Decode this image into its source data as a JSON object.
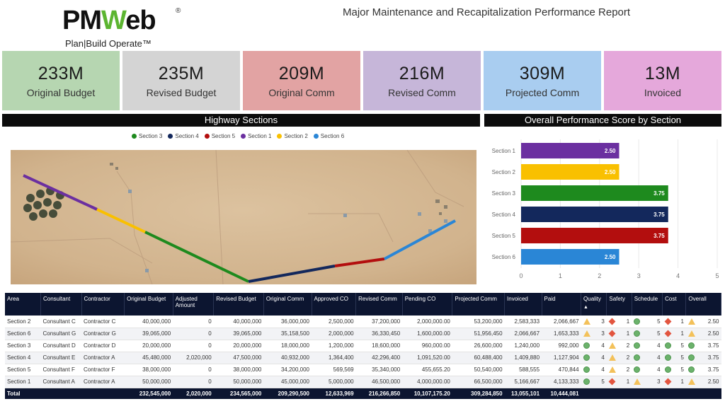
{
  "header": {
    "logo_text_a": "PM",
    "logo_text_w": "W",
    "logo_text_b": "eb",
    "logo_reg": "®",
    "logo_tagline": "Plan|Build Operate™",
    "title": "Major Maintenance and Recapitalization Performance Report"
  },
  "kpis": [
    {
      "value": "233M",
      "label": "Original Budget",
      "color": "#b6d6b1"
    },
    {
      "value": "235M",
      "label": "Revised Budget",
      "color": "#d4d4d4"
    },
    {
      "value": "209M",
      "label": "Original Comm",
      "color": "#e2a3a3"
    },
    {
      "value": "216M",
      "label": "Revised Comm",
      "color": "#c6b6d9"
    },
    {
      "value": "309M",
      "label": "Projected Comm",
      "color": "#a9cdf0"
    },
    {
      "value": "13M",
      "label": "Invoiced",
      "color": "#e5a8db"
    }
  ],
  "sections": {
    "highway_title": "Highway Sections",
    "performance_title": "Overall Performance Score by Section"
  },
  "legend": [
    {
      "label": "Section 3",
      "color": "#1e8a1e"
    },
    {
      "label": "Section 4",
      "color": "#13285c"
    },
    {
      "label": "Section 5",
      "color": "#b30e0e"
    },
    {
      "label": "Section 1",
      "color": "#6b2fa0"
    },
    {
      "label": "Section 2",
      "color": "#f9c000"
    },
    {
      "label": "Section 6",
      "color": "#2a86d6"
    }
  ],
  "chart_data": {
    "type": "bar",
    "orientation": "horizontal",
    "categories": [
      "Section 1",
      "Section 2",
      "Section 3",
      "Section 4",
      "Section 5",
      "Section 6"
    ],
    "values": [
      2.5,
      2.5,
      3.75,
      3.75,
      3.75,
      2.5
    ],
    "value_labels": [
      "2.50",
      "2.50",
      "3.75",
      "3.75",
      "3.75",
      "2.50"
    ],
    "colors": [
      "#6b2fa0",
      "#f9c000",
      "#1e8a1e",
      "#13285c",
      "#b30e0e",
      "#2a86d6"
    ],
    "xlim": [
      0,
      5
    ],
    "xticks": [
      "0",
      "1",
      "2",
      "3",
      "4",
      "5"
    ],
    "title": "Overall Performance Score by Section"
  },
  "table": {
    "headers": [
      "Area",
      "Consultant",
      "Contractor",
      "Original Budget",
      "Adjusted Amount",
      "Revised Budget",
      "Original Comm",
      "Approved CO",
      "Revised Comm",
      "Pending CO",
      "Projected Comm",
      "Invoiced",
      "Paid",
      "Quality",
      "Safety",
      "Schedule",
      "Cost",
      "Overall"
    ],
    "sort_indicator": "▲",
    "rows": [
      {
        "area": "Section 2",
        "consultant": "Consultant C",
        "contractor": "Contractor C",
        "orig_budget": "40,000,000",
        "adjusted": "0",
        "rev_budget": "40,000,000",
        "orig_comm": "36,000,000",
        "approved_co": "2,500,000",
        "rev_comm": "37,200,000",
        "pending_co": "2,000,000.00",
        "proj_comm": "53,200,000",
        "invoiced": "2,583,333",
        "paid": "2,066,667",
        "quality": {
          "icon": "triangle",
          "score": "3"
        },
        "safety": {
          "icon": "diamond",
          "score": "1"
        },
        "schedule": {
          "icon": "circle",
          "score": "5"
        },
        "cost": {
          "icon": "diamond",
          "score": "1"
        },
        "overall": {
          "icon": "triangle",
          "score": "2.50"
        }
      },
      {
        "area": "Section 6",
        "consultant": "Consultant G",
        "contractor": "Contractor G",
        "orig_budget": "39,065,000",
        "adjusted": "0",
        "rev_budget": "39,065,000",
        "orig_comm": "35,158,500",
        "approved_co": "2,000,000",
        "rev_comm": "36,330,450",
        "pending_co": "1,600,000.00",
        "proj_comm": "51,956,450",
        "invoiced": "2,066,667",
        "paid": "1,653,333",
        "quality": {
          "icon": "triangle",
          "score": "3"
        },
        "safety": {
          "icon": "diamond",
          "score": "1"
        },
        "schedule": {
          "icon": "circle",
          "score": "5"
        },
        "cost": {
          "icon": "diamond",
          "score": "1"
        },
        "overall": {
          "icon": "triangle",
          "score": "2.50"
        }
      },
      {
        "area": "Section 3",
        "consultant": "Consultant D",
        "contractor": "Contractor D",
        "orig_budget": "20,000,000",
        "adjusted": "0",
        "rev_budget": "20,000,000",
        "orig_comm": "18,000,000",
        "approved_co": "1,200,000",
        "rev_comm": "18,600,000",
        "pending_co": "960,000.00",
        "proj_comm": "26,600,000",
        "invoiced": "1,240,000",
        "paid": "992,000",
        "quality": {
          "icon": "circle",
          "score": "4"
        },
        "safety": {
          "icon": "triangle",
          "score": "2"
        },
        "schedule": {
          "icon": "circle",
          "score": "4"
        },
        "cost": {
          "icon": "circle",
          "score": "5"
        },
        "overall": {
          "icon": "circle",
          "score": "3.75"
        }
      },
      {
        "area": "Section 4",
        "consultant": "Consultant E",
        "contractor": "Contractor A",
        "orig_budget": "45,480,000",
        "adjusted": "2,020,000",
        "rev_budget": "47,500,000",
        "orig_comm": "40,932,000",
        "approved_co": "1,364,400",
        "rev_comm": "42,296,400",
        "pending_co": "1,091,520.00",
        "proj_comm": "60,488,400",
        "invoiced": "1,409,880",
        "paid": "1,127,904",
        "quality": {
          "icon": "circle",
          "score": "4"
        },
        "safety": {
          "icon": "triangle",
          "score": "2"
        },
        "schedule": {
          "icon": "circle",
          "score": "4"
        },
        "cost": {
          "icon": "circle",
          "score": "5"
        },
        "overall": {
          "icon": "circle",
          "score": "3.75"
        }
      },
      {
        "area": "Section 5",
        "consultant": "Consultant F",
        "contractor": "Contractor F",
        "orig_budget": "38,000,000",
        "adjusted": "0",
        "rev_budget": "38,000,000",
        "orig_comm": "34,200,000",
        "approved_co": "569,569",
        "rev_comm": "35,340,000",
        "pending_co": "455,655.20",
        "proj_comm": "50,540,000",
        "invoiced": "588,555",
        "paid": "470,844",
        "quality": {
          "icon": "circle",
          "score": "4"
        },
        "safety": {
          "icon": "triangle",
          "score": "2"
        },
        "schedule": {
          "icon": "circle",
          "score": "4"
        },
        "cost": {
          "icon": "circle",
          "score": "5"
        },
        "overall": {
          "icon": "circle",
          "score": "3.75"
        }
      },
      {
        "area": "Section 1",
        "consultant": "Consultant A",
        "contractor": "Contractor A",
        "orig_budget": "50,000,000",
        "adjusted": "0",
        "rev_budget": "50,000,000",
        "orig_comm": "45,000,000",
        "approved_co": "5,000,000",
        "rev_comm": "46,500,000",
        "pending_co": "4,000,000.00",
        "proj_comm": "66,500,000",
        "invoiced": "5,166,667",
        "paid": "4,133,333",
        "quality": {
          "icon": "circle",
          "score": "5"
        },
        "safety": {
          "icon": "diamond",
          "score": "1"
        },
        "schedule": {
          "icon": "triangle",
          "score": "3"
        },
        "cost": {
          "icon": "diamond",
          "score": "1"
        },
        "overall": {
          "icon": "triangle",
          "score": "2.50"
        }
      }
    ],
    "total": {
      "label": "Total",
      "orig_budget": "232,545,000",
      "adjusted": "2,020,000",
      "rev_budget": "234,565,000",
      "orig_comm": "209,290,500",
      "approved_co": "12,633,969",
      "rev_comm": "216,266,850",
      "pending_co": "10,107,175.20",
      "proj_comm": "309,284,850",
      "invoiced": "13,055,101",
      "paid": "10,444,081"
    }
  }
}
